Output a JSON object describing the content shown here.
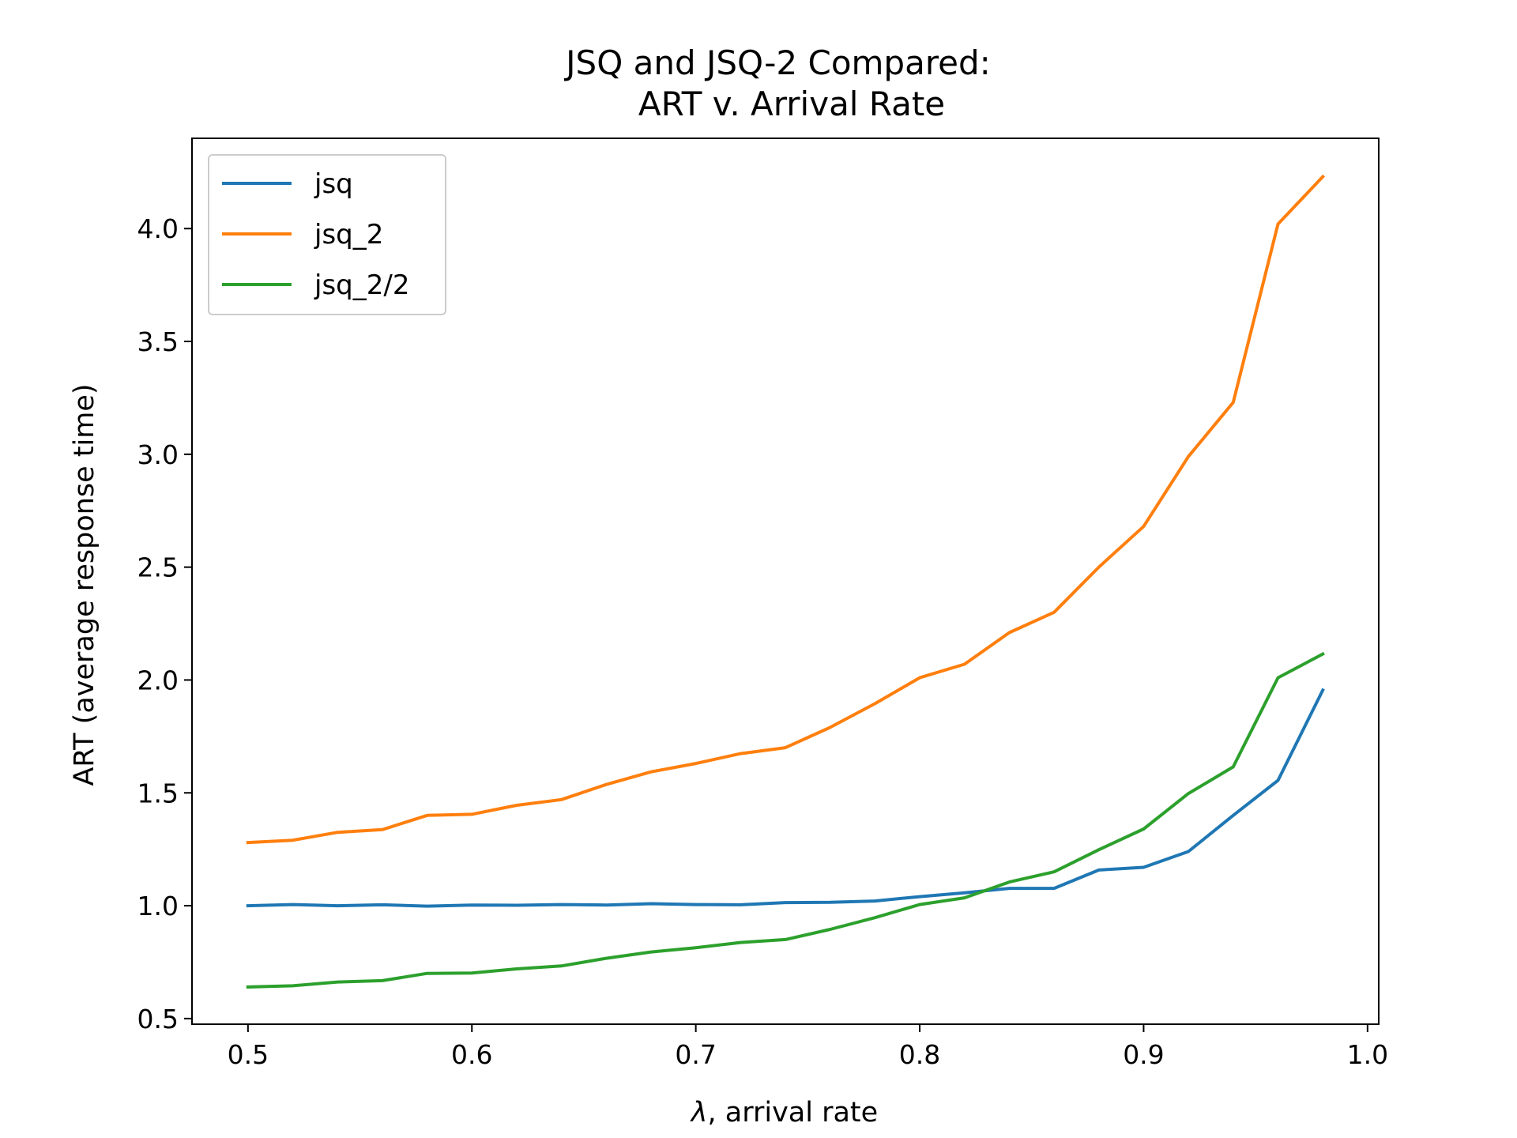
{
  "chart_data": {
    "type": "line",
    "title": "JSQ and JSQ-2 Compared:",
    "subtitle": "ART v. Arrival Rate",
    "xlabel_symbol": "λ",
    "xlabel": ", arrival rate",
    "ylabel": "ART (average response time)",
    "xlim": [
      0.475,
      1.005
    ],
    "ylim": [
      0.475,
      4.4
    ],
    "x_ticks": [
      0.5,
      0.6,
      0.7,
      0.8,
      0.9,
      1.0
    ],
    "x_tick_labels": [
      "0.5",
      "0.6",
      "0.7",
      "0.8",
      "0.9",
      "1.0"
    ],
    "y_ticks": [
      0.5,
      1.0,
      1.5,
      2.0,
      2.5,
      3.0,
      3.5,
      4.0
    ],
    "y_tick_labels": [
      "0.5",
      "1.0",
      "1.5",
      "2.0",
      "2.5",
      "3.0",
      "3.5",
      "4.0"
    ],
    "grid": false,
    "legend_position": "top-left",
    "x": [
      0.5,
      0.52,
      0.54,
      0.56,
      0.58,
      0.6,
      0.62,
      0.64,
      0.66,
      0.68,
      0.7,
      0.72,
      0.74,
      0.76,
      0.78,
      0.8,
      0.82,
      0.84,
      0.86,
      0.88,
      0.9,
      0.92,
      0.94,
      0.96,
      0.98
    ],
    "series": [
      {
        "name": "jsq",
        "color": "#1f77b4",
        "values": [
          1.0,
          1.005,
          1.0,
          1.004,
          0.998,
          1.003,
          1.002,
          1.005,
          1.003,
          1.009,
          1.005,
          1.004,
          1.014,
          1.015,
          1.021,
          1.04,
          1.057,
          1.077,
          1.077,
          1.158,
          1.17,
          1.24,
          1.4,
          1.555,
          1.955
        ]
      },
      {
        "name": "jsq_2",
        "color": "#ff7f0e",
        "values": [
          1.28,
          1.29,
          1.325,
          1.337,
          1.4,
          1.405,
          1.445,
          1.47,
          1.537,
          1.593,
          1.63,
          1.674,
          1.7,
          1.79,
          1.895,
          2.01,
          2.07,
          2.21,
          2.3,
          2.5,
          2.68,
          2.99,
          3.23,
          4.02,
          4.23
        ]
      },
      {
        "name": "jsq_2/2",
        "color": "#2ca02c",
        "values": [
          0.64,
          0.645,
          0.662,
          0.668,
          0.7,
          0.702,
          0.72,
          0.733,
          0.767,
          0.795,
          0.814,
          0.837,
          0.85,
          0.895,
          0.947,
          1.005,
          1.035,
          1.105,
          1.15,
          1.248,
          1.34,
          1.497,
          1.615,
          2.01,
          2.115
        ]
      }
    ]
  }
}
